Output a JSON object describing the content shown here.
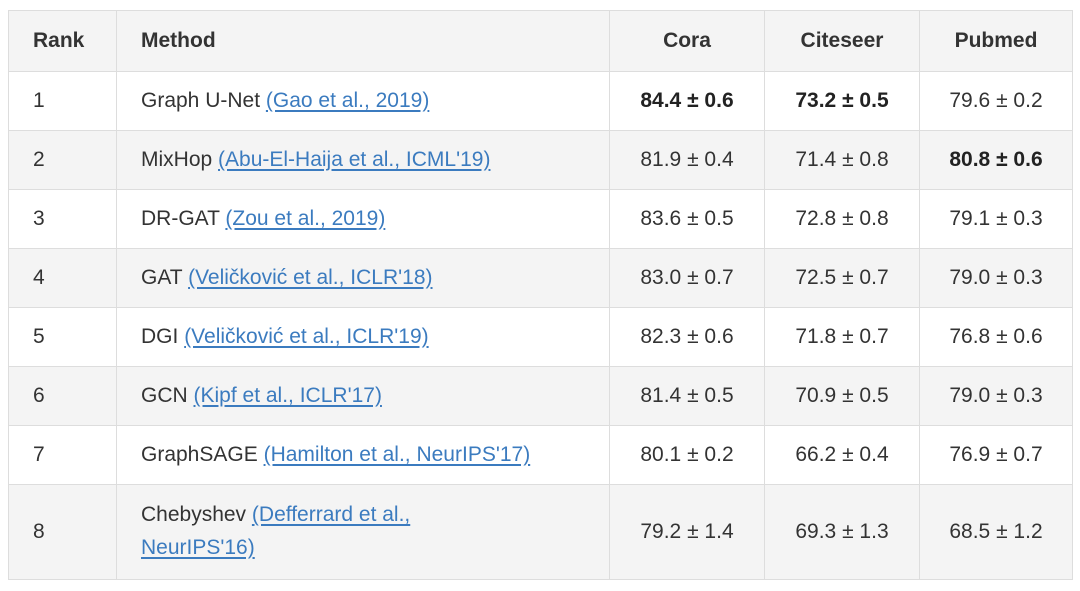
{
  "headers": {
    "rank": "Rank",
    "method": "Method",
    "cora": "Cora",
    "citeseer": "Citeseer",
    "pubmed": "Pubmed"
  },
  "rows": [
    {
      "rank": "1",
      "method": "Graph U-Net",
      "ref": "(Gao et al., 2019)",
      "cora": "84.4 ± 0.6",
      "citeseer": "73.2 ± 0.5",
      "pubmed": "79.6 ± 0.2",
      "bold": [
        "cora",
        "citeseer"
      ]
    },
    {
      "rank": "2",
      "method": "MixHop",
      "ref": "(Abu-El-Haija et al., ICML'19)",
      "cora": "81.9 ± 0.4",
      "citeseer": "71.4 ± 0.8",
      "pubmed": "80.8 ± 0.6",
      "bold": [
        "pubmed"
      ]
    },
    {
      "rank": "3",
      "method": "DR-GAT",
      "ref": "(Zou et al., 2019)",
      "cora": "83.6 ± 0.5",
      "citeseer": "72.8 ± 0.8",
      "pubmed": "79.1 ± 0.3",
      "bold": []
    },
    {
      "rank": "4",
      "method": "GAT",
      "ref": "(Veličković et al., ICLR'18)",
      "cora": "83.0 ± 0.7",
      "citeseer": "72.5 ± 0.7",
      "pubmed": "79.0 ± 0.3",
      "bold": []
    },
    {
      "rank": "5",
      "method": "DGI",
      "ref": "(Veličković et al., ICLR'19)",
      "cora": "82.3 ± 0.6",
      "citeseer": "71.8 ± 0.7",
      "pubmed": "76.8 ± 0.6",
      "bold": []
    },
    {
      "rank": "6",
      "method": "GCN",
      "ref": "(Kipf et al., ICLR'17)",
      "cora": "81.4 ± 0.5",
      "citeseer": "70.9 ± 0.5",
      "pubmed": "79.0 ± 0.3",
      "bold": []
    },
    {
      "rank": "7",
      "method": "GraphSAGE",
      "ref": "(Hamilton et al., NeurIPS'17)",
      "cora": "80.1 ± 0.2",
      "citeseer": "66.2 ± 0.4",
      "pubmed": "76.9 ± 0.7",
      "bold": []
    },
    {
      "rank": "8",
      "method": "Chebyshev",
      "ref": "(Defferrard et al., NeurIPS'16)",
      "ref_line1": "(Defferrard et al.,",
      "ref_line2": "NeurIPS'16)",
      "cora": "79.2 ± 1.4",
      "citeseer": "69.3 ± 1.3",
      "pubmed": "68.5 ± 1.2",
      "bold": []
    }
  ]
}
